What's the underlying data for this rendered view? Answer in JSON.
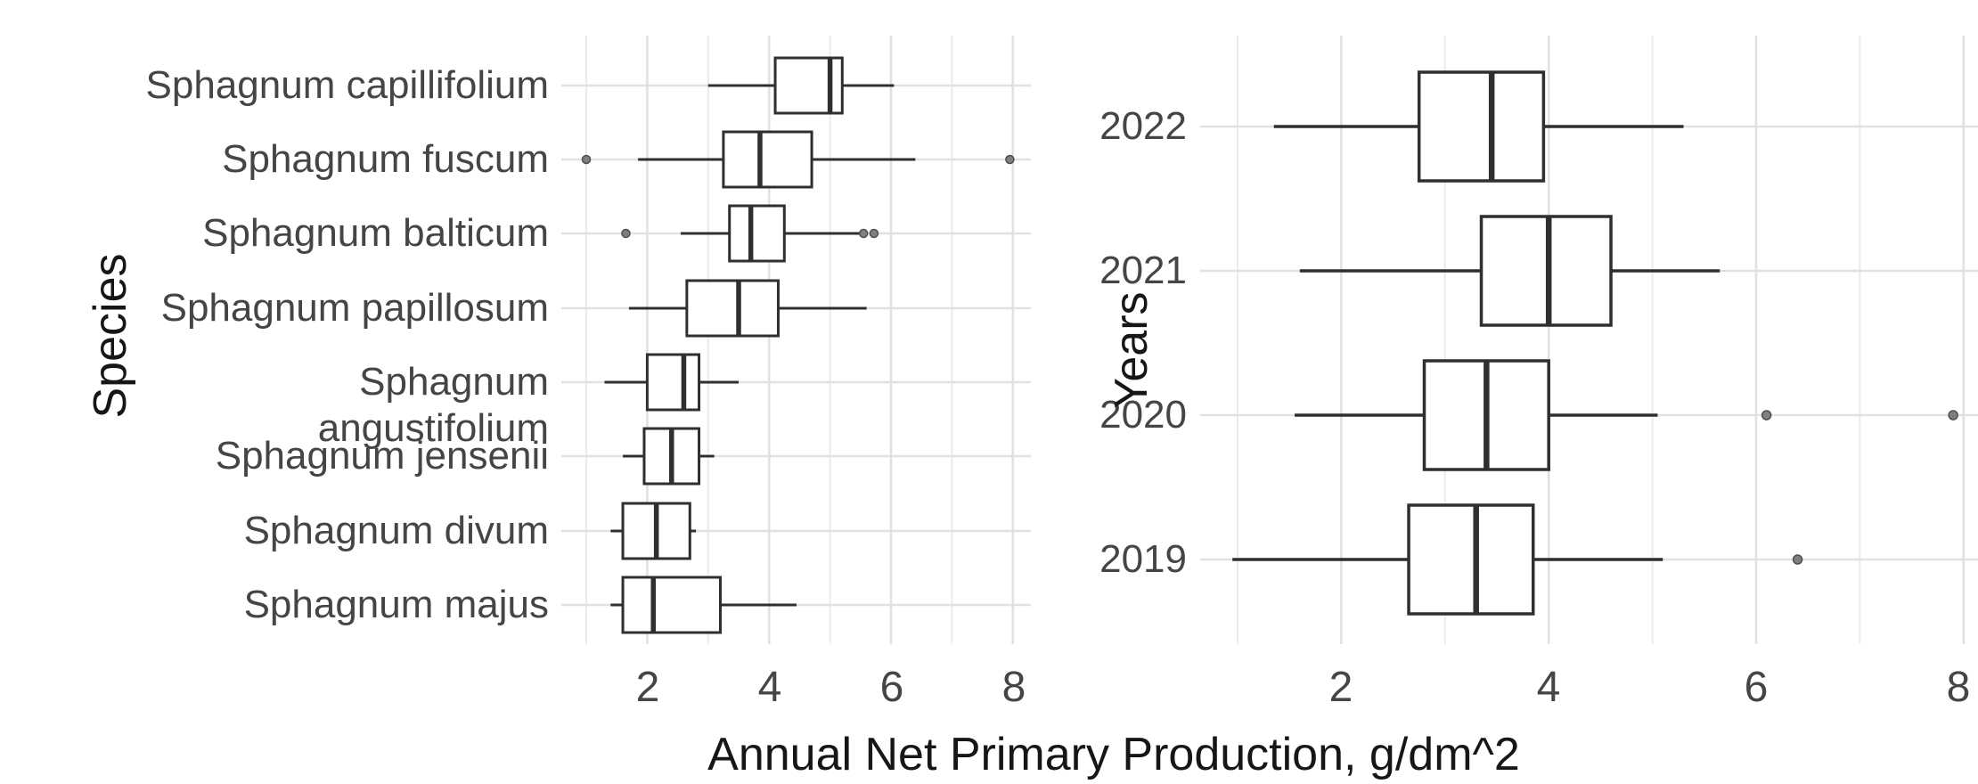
{
  "figure": {
    "xlabel_shared": "Annual Net Primary Production, g/dm^2",
    "background": "#ffffff"
  },
  "colors": {
    "background": "#ffffff",
    "grid_major": "#e1e1e1",
    "grid_minor": "#ebebeb",
    "box_stroke": "#2f2f2f",
    "box_fill": "#ffffff",
    "outlier_fill": "#7f7f7f",
    "outlier_stroke": "#4f4f4f",
    "axis_text": "#454545",
    "title_text": "#161616"
  },
  "chart_data": [
    {
      "type": "boxplot",
      "orientation": "horizontal",
      "ylabel": "Species",
      "xlabel": "Annual Net Primary Production, g/dm^2",
      "xticks": [
        "2",
        "4",
        "6",
        "8"
      ],
      "xtick_values": [
        2,
        4,
        6,
        8
      ],
      "xlim": [
        0.6,
        8.3
      ],
      "grid": true,
      "categories": [
        "Sphagnum capillifolium",
        "Sphagnum fuscum",
        "Sphagnum balticum",
        "Sphagnum papillosum",
        "Sphagnum angustifolium",
        "Sphagnum jensenii",
        "Sphagnum divum",
        "Sphagnum majus"
      ],
      "boxes": [
        {
          "category": "Sphagnum capillifolium",
          "whisker_low": 3.0,
          "q1": 4.1,
          "median": 5.0,
          "q3": 5.2,
          "whisker_high": 6.05,
          "outliers": []
        },
        {
          "category": "Sphagnum fuscum",
          "whisker_low": 1.85,
          "q1": 3.25,
          "median": 3.85,
          "q3": 4.7,
          "whisker_high": 6.4,
          "outliers": [
            1.0,
            7.95
          ]
        },
        {
          "category": "Sphagnum balticum",
          "whisker_low": 2.55,
          "q1": 3.35,
          "median": 3.7,
          "q3": 4.25,
          "whisker_high": 5.5,
          "outliers": [
            1.65,
            5.55,
            5.72
          ]
        },
        {
          "category": "Sphagnum papillosum",
          "whisker_low": 1.7,
          "q1": 2.65,
          "median": 3.5,
          "q3": 4.15,
          "whisker_high": 5.6,
          "outliers": []
        },
        {
          "category": "Sphagnum angustifolium",
          "whisker_low": 1.3,
          "q1": 2.0,
          "median": 2.6,
          "q3": 2.85,
          "whisker_high": 3.5,
          "outliers": []
        },
        {
          "category": "Sphagnum jensenii",
          "whisker_low": 1.6,
          "q1": 1.95,
          "median": 2.4,
          "q3": 2.85,
          "whisker_high": 3.1,
          "outliers": []
        },
        {
          "category": "Sphagnum divum",
          "whisker_low": 1.4,
          "q1": 1.6,
          "median": 2.15,
          "q3": 2.7,
          "whisker_high": 2.8,
          "outliers": []
        },
        {
          "category": "Sphagnum majus",
          "whisker_low": 1.4,
          "q1": 1.6,
          "median": 2.1,
          "q3": 3.2,
          "whisker_high": 4.45,
          "outliers": []
        }
      ]
    },
    {
      "type": "boxplot",
      "orientation": "horizontal",
      "ylabel": "Years",
      "xlabel": "Annual Net Primary Production, g/dm^2",
      "xticks": [
        "2",
        "4",
        "6",
        "8"
      ],
      "xtick_values": [
        2,
        4,
        6,
        8
      ],
      "xlim": [
        0.65,
        8.15
      ],
      "grid": true,
      "categories": [
        "2022",
        "2021",
        "2020",
        "2019"
      ],
      "boxes": [
        {
          "category": "2022",
          "whisker_low": 1.35,
          "q1": 2.75,
          "median": 3.45,
          "q3": 3.95,
          "whisker_high": 5.3,
          "outliers": []
        },
        {
          "category": "2021",
          "whisker_low": 1.6,
          "q1": 3.35,
          "median": 4.0,
          "q3": 4.6,
          "whisker_high": 5.65,
          "outliers": []
        },
        {
          "category": "2020",
          "whisker_low": 1.55,
          "q1": 2.8,
          "median": 3.4,
          "q3": 4.0,
          "whisker_high": 5.05,
          "outliers": [
            6.1,
            7.9
          ]
        },
        {
          "category": "2019",
          "whisker_low": 0.95,
          "q1": 2.65,
          "median": 3.3,
          "q3": 3.85,
          "whisker_high": 5.1,
          "outliers": [
            6.4
          ]
        }
      ]
    }
  ]
}
